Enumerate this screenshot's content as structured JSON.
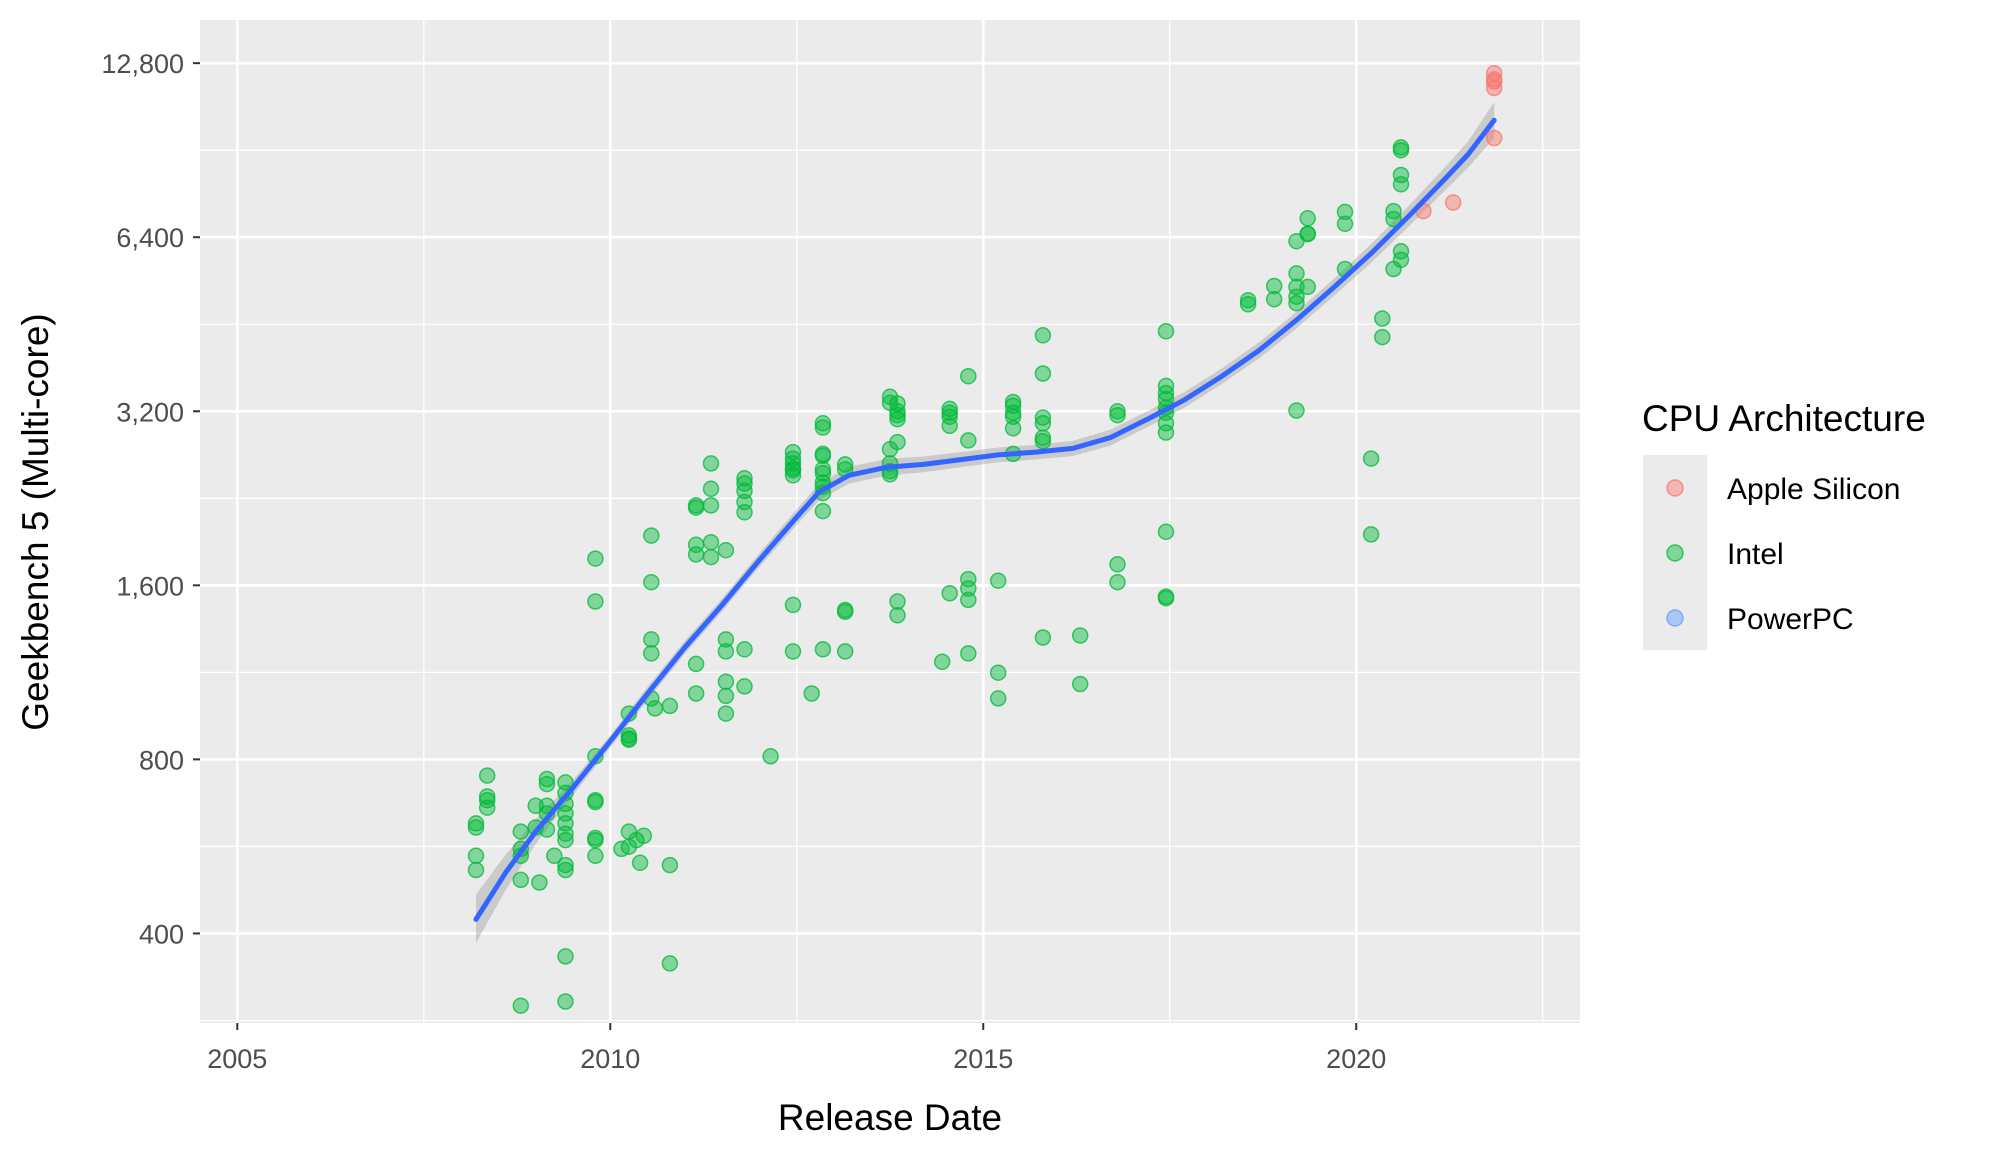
{
  "chart_data": {
    "type": "scatter",
    "title": "",
    "xlabel": "Release Date",
    "ylabel": "Geekbench 5 (Multi-core)",
    "x_scale": "date",
    "y_scale": "log2",
    "xlim": [
      2004.5,
      2023.0
    ],
    "ylim": [
      280,
      15200
    ],
    "x_ticks": [
      2005,
      2010,
      2015,
      2020
    ],
    "x_tick_labels": [
      "2005",
      "2010",
      "2015",
      "2020"
    ],
    "y_ticks": [
      400,
      800,
      1600,
      3200,
      6400,
      12800
    ],
    "y_tick_labels": [
      "400",
      "800",
      "1,600",
      "3,200",
      "6,400",
      "12,800"
    ],
    "grid": true,
    "legend": {
      "title": "CPU Architecture",
      "position": "right",
      "entries": [
        {
          "label": "Apple Silicon",
          "color": "#F8766D"
        },
        {
          "label": "Intel",
          "color": "#00BA38"
        },
        {
          "label": "PowerPC",
          "color": "#619CFF"
        }
      ]
    },
    "series": [
      {
        "name": "Apple Silicon",
        "color": "#F8766D",
        "points": [
          [
            2020.9,
            7100
          ],
          [
            2021.3,
            7350
          ],
          [
            2021.85,
            12300
          ],
          [
            2021.85,
            11900
          ],
          [
            2021.85,
            11600
          ],
          [
            2021.85,
            12000
          ],
          [
            2021.85,
            9500
          ]
        ]
      },
      {
        "name": "Intel",
        "color": "#00BA38",
        "points": [
          [
            2008.2,
            620
          ],
          [
            2008.2,
            610
          ],
          [
            2008.2,
            545
          ],
          [
            2008.2,
            515
          ],
          [
            2008.35,
            750
          ],
          [
            2008.35,
            690
          ],
          [
            2008.35,
            680
          ],
          [
            2008.35,
            660
          ],
          [
            2008.8,
            600
          ],
          [
            2008.8,
            560
          ],
          [
            2008.8,
            545
          ],
          [
            2008.8,
            495
          ],
          [
            2008.8,
            300
          ],
          [
            2009.0,
            665
          ],
          [
            2009.0,
            610
          ],
          [
            2009.05,
            490
          ],
          [
            2009.15,
            740
          ],
          [
            2009.15,
            725
          ],
          [
            2009.15,
            665
          ],
          [
            2009.15,
            645
          ],
          [
            2009.15,
            605
          ],
          [
            2009.25,
            545
          ],
          [
            2009.4,
            730
          ],
          [
            2009.4,
            700
          ],
          [
            2009.4,
            670
          ],
          [
            2009.4,
            645
          ],
          [
            2009.4,
            620
          ],
          [
            2009.4,
            595
          ],
          [
            2009.4,
            580
          ],
          [
            2009.4,
            525
          ],
          [
            2009.4,
            515
          ],
          [
            2009.4,
            365
          ],
          [
            2009.4,
            305
          ],
          [
            2009.8,
            1780
          ],
          [
            2009.8,
            1500
          ],
          [
            2009.8,
            810
          ],
          [
            2009.8,
            680
          ],
          [
            2009.8,
            675
          ],
          [
            2009.8,
            585
          ],
          [
            2009.8,
            580
          ],
          [
            2009.8,
            545
          ],
          [
            2010.15,
            560
          ],
          [
            2010.25,
            960
          ],
          [
            2010.25,
            880
          ],
          [
            2010.25,
            870
          ],
          [
            2010.25,
            865
          ],
          [
            2010.25,
            600
          ],
          [
            2010.25,
            565
          ],
          [
            2010.35,
            580
          ],
          [
            2010.4,
            530
          ],
          [
            2010.45,
            590
          ],
          [
            2010.55,
            1950
          ],
          [
            2010.55,
            1620
          ],
          [
            2010.55,
            1290
          ],
          [
            2010.55,
            1220
          ],
          [
            2010.55,
            1020
          ],
          [
            2010.6,
            980
          ],
          [
            2010.8,
            990
          ],
          [
            2010.8,
            525
          ],
          [
            2010.8,
            355
          ],
          [
            2011.15,
            2200
          ],
          [
            2011.15,
            2180
          ],
          [
            2011.15,
            1880
          ],
          [
            2011.15,
            1810
          ],
          [
            2011.15,
            1170
          ],
          [
            2011.15,
            1040
          ],
          [
            2011.35,
            2600
          ],
          [
            2011.35,
            2350
          ],
          [
            2011.35,
            2200
          ],
          [
            2011.35,
            1900
          ],
          [
            2011.35,
            1790
          ],
          [
            2011.55,
            1840
          ],
          [
            2011.55,
            1290
          ],
          [
            2011.55,
            1230
          ],
          [
            2011.55,
            1090
          ],
          [
            2011.55,
            1030
          ],
          [
            2011.55,
            960
          ],
          [
            2011.8,
            2450
          ],
          [
            2011.8,
            2400
          ],
          [
            2011.8,
            2330
          ],
          [
            2011.8,
            2230
          ],
          [
            2011.8,
            2140
          ],
          [
            2011.8,
            1240
          ],
          [
            2011.8,
            1070
          ],
          [
            2012.15,
            810
          ],
          [
            2012.45,
            2720
          ],
          [
            2012.45,
            2650
          ],
          [
            2012.45,
            2600
          ],
          [
            2012.45,
            2550
          ],
          [
            2012.45,
            2530
          ],
          [
            2012.45,
            2480
          ],
          [
            2012.45,
            1480
          ],
          [
            2012.45,
            1230
          ],
          [
            2012.7,
            1040
          ],
          [
            2012.85,
            3050
          ],
          [
            2012.85,
            3000
          ],
          [
            2012.85,
            2700
          ],
          [
            2012.85,
            2680
          ],
          [
            2012.85,
            2540
          ],
          [
            2012.85,
            2500
          ],
          [
            2012.85,
            2410
          ],
          [
            2012.85,
            2370
          ],
          [
            2012.85,
            2310
          ],
          [
            2012.85,
            2150
          ],
          [
            2012.85,
            1240
          ],
          [
            2013.15,
            2590
          ],
          [
            2013.15,
            2540
          ],
          [
            2013.15,
            1450
          ],
          [
            2013.15,
            1440
          ],
          [
            2013.15,
            1230
          ],
          [
            2013.75,
            3390
          ],
          [
            2013.75,
            3310
          ],
          [
            2013.75,
            2750
          ],
          [
            2013.75,
            2600
          ],
          [
            2013.75,
            2520
          ],
          [
            2013.75,
            2490
          ],
          [
            2013.85,
            3300
          ],
          [
            2013.85,
            3200
          ],
          [
            2013.85,
            3150
          ],
          [
            2013.85,
            3100
          ],
          [
            2013.85,
            2830
          ],
          [
            2013.85,
            1500
          ],
          [
            2013.85,
            1420
          ],
          [
            2014.45,
            1180
          ],
          [
            2014.55,
            3230
          ],
          [
            2014.55,
            3180
          ],
          [
            2014.55,
            3130
          ],
          [
            2014.55,
            3020
          ],
          [
            2014.55,
            1550
          ],
          [
            2014.8,
            3680
          ],
          [
            2014.8,
            2850
          ],
          [
            2014.8,
            1640
          ],
          [
            2014.8,
            1580
          ],
          [
            2014.8,
            1510
          ],
          [
            2014.8,
            1220
          ],
          [
            2015.2,
            1630
          ],
          [
            2015.2,
            1130
          ],
          [
            2015.2,
            1020
          ],
          [
            2015.4,
            3320
          ],
          [
            2015.4,
            3270
          ],
          [
            2015.4,
            3180
          ],
          [
            2015.4,
            3130
          ],
          [
            2015.4,
            2990
          ],
          [
            2015.4,
            2700
          ],
          [
            2015.8,
            4330
          ],
          [
            2015.8,
            3720
          ],
          [
            2015.8,
            3120
          ],
          [
            2015.8,
            3050
          ],
          [
            2015.8,
            2880
          ],
          [
            2015.8,
            2840
          ],
          [
            2015.8,
            1300
          ],
          [
            2016.3,
            1310
          ],
          [
            2016.3,
            1080
          ],
          [
            2016.8,
            3200
          ],
          [
            2016.8,
            3150
          ],
          [
            2016.8,
            1740
          ],
          [
            2016.8,
            1620
          ],
          [
            2017.45,
            4400
          ],
          [
            2017.45,
            3540
          ],
          [
            2017.45,
            3440
          ],
          [
            2017.45,
            3360
          ],
          [
            2017.45,
            3250
          ],
          [
            2017.45,
            3180
          ],
          [
            2017.45,
            3050
          ],
          [
            2017.45,
            2940
          ],
          [
            2017.45,
            1980
          ],
          [
            2017.45,
            1530
          ],
          [
            2017.45,
            1520
          ],
          [
            2018.55,
            4980
          ],
          [
            2018.55,
            4900
          ],
          [
            2018.9,
            5270
          ],
          [
            2018.9,
            5000
          ],
          [
            2019.2,
            6300
          ],
          [
            2019.2,
            5540
          ],
          [
            2019.2,
            5250
          ],
          [
            2019.2,
            5050
          ],
          [
            2019.2,
            4920
          ],
          [
            2019.2,
            3210
          ],
          [
            2019.35,
            6900
          ],
          [
            2019.35,
            6490
          ],
          [
            2019.35,
            6480
          ],
          [
            2019.35,
            5250
          ],
          [
            2019.85,
            7080
          ],
          [
            2019.85,
            6750
          ],
          [
            2019.85,
            5640
          ],
          [
            2020.2,
            2650
          ],
          [
            2020.2,
            1960
          ],
          [
            2020.35,
            4630
          ],
          [
            2020.35,
            4300
          ],
          [
            2020.5,
            7100
          ],
          [
            2020.5,
            6880
          ],
          [
            2020.5,
            5640
          ],
          [
            2020.6,
            9150
          ],
          [
            2020.6,
            9050
          ],
          [
            2020.6,
            8200
          ],
          [
            2020.6,
            7900
          ],
          [
            2020.6,
            6050
          ],
          [
            2020.6,
            5850
          ]
        ]
      },
      {
        "name": "PowerPC",
        "color": "#619CFF",
        "points": []
      }
    ],
    "smooth": {
      "color": "#3366FF",
      "band_color": "#999999",
      "points": [
        [
          2008.2,
          423,
          385,
          467
        ],
        [
          2008.6,
          510,
          476,
          548
        ],
        [
          2009.0,
          600,
          571,
          630
        ],
        [
          2009.5,
          715,
          694,
          737
        ],
        [
          2010.0,
          860,
          839,
          881
        ],
        [
          2010.5,
          1040,
          1013,
          1068
        ],
        [
          2011.0,
          1250,
          1218,
          1283
        ],
        [
          2011.5,
          1480,
          1443,
          1518
        ],
        [
          2012.0,
          1770,
          1723,
          1819
        ],
        [
          2012.5,
          2100,
          2036,
          2166
        ],
        [
          2012.8,
          2320,
          2244,
          2399
        ],
        [
          2013.2,
          2480,
          2399,
          2564
        ],
        [
          2013.7,
          2560,
          2477,
          2646
        ],
        [
          2014.2,
          2590,
          2510,
          2673
        ],
        [
          2014.7,
          2640,
          2562,
          2720
        ],
        [
          2015.2,
          2690,
          2612,
          2770
        ],
        [
          2015.7,
          2720,
          2641,
          2801
        ],
        [
          2016.2,
          2760,
          2678,
          2844
        ],
        [
          2016.7,
          2880,
          2789,
          2974
        ],
        [
          2017.2,
          3100,
          3004,
          3199
        ],
        [
          2017.7,
          3350,
          3247,
          3456
        ],
        [
          2018.2,
          3680,
          3568,
          3795
        ],
        [
          2018.7,
          4080,
          3952,
          4212
        ],
        [
          2019.2,
          4600,
          4451,
          4754
        ],
        [
          2019.7,
          5240,
          5064,
          5422
        ],
        [
          2020.2,
          6000,
          5780,
          6228
        ],
        [
          2020.7,
          6950,
          6668,
          7244
        ],
        [
          2021.2,
          8100,
          7733,
          8484
        ],
        [
          2021.5,
          8900,
          8444,
          9381
        ],
        [
          2021.85,
          10200,
          9500,
          10960
        ]
      ]
    }
  }
}
